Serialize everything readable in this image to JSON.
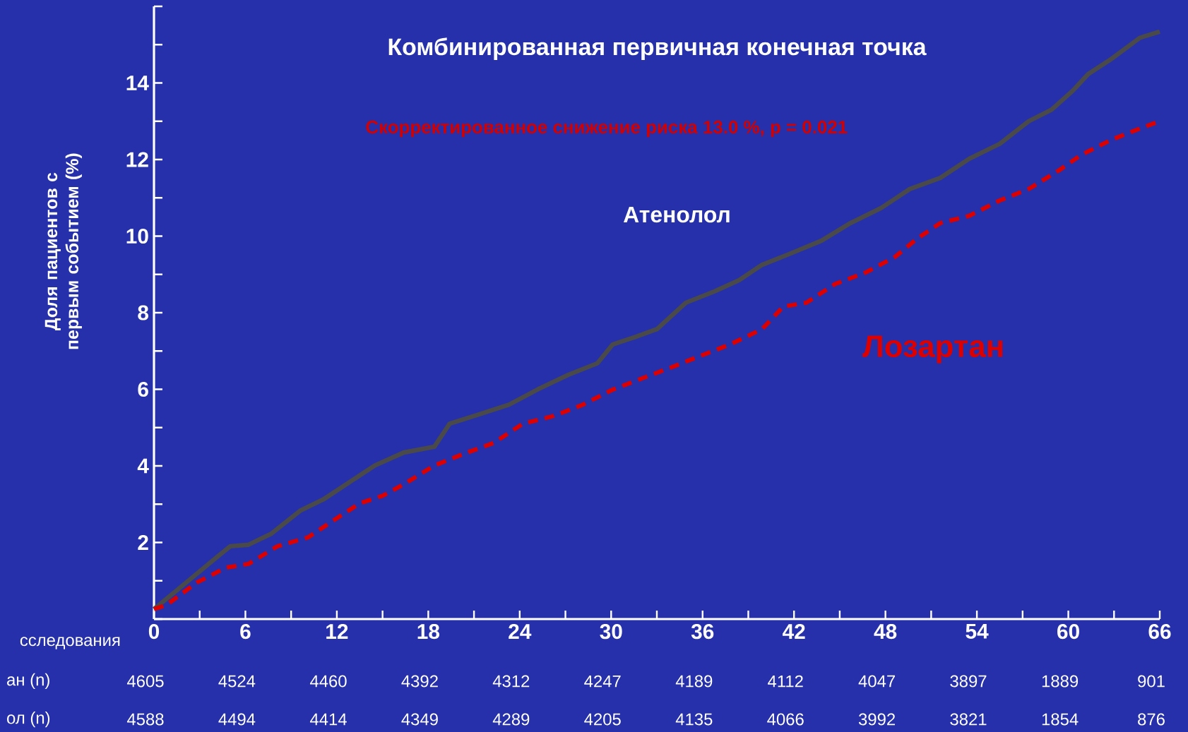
{
  "chart_data": {
    "type": "line",
    "title": "Комбинированная первичная конечная точка",
    "subtitle": "Скорректированное снижение риска **13.0** %, p = 0.021",
    "xlabel": "сследования",
    "ylabel": "Доля пациентов с первым событием (%)",
    "xlim": [
      0,
      66
    ],
    "ylim": [
      0,
      16
    ],
    "xticks": [
      0,
      6,
      12,
      18,
      24,
      30,
      36,
      42,
      48,
      54,
      60,
      66
    ],
    "yticks": [
      {
        "value": 0,
        "label": null
      },
      {
        "value": 1,
        "label": null
      },
      2,
      {
        "value": 3,
        "label": null
      },
      4,
      {
        "value": 5,
        "label": null
      },
      6,
      {
        "value": 7,
        "label": null
      },
      8,
      {
        "value": 9,
        "label": null
      },
      10,
      {
        "value": 11,
        "label": null
      },
      12,
      {
        "value": 13,
        "label": null
      },
      14,
      {
        "value": 15,
        "label": null
      },
      {
        "value": 16,
        "label": null
      }
    ],
    "grid": false,
    "series": [
      {
        "name": "Атенолол",
        "color": "#4a4a4a",
        "line_style": "solid",
        "x": [
          0,
          1.8,
          4.2,
          5,
          6.2,
          7.7,
          9.6,
          11.1,
          13,
          14.5,
          16.4,
          18.4,
          19.4,
          21.3,
          23.3,
          25.2,
          27.2,
          29.1,
          30.1,
          31.6,
          33,
          34.9,
          36.8,
          38.4,
          39.9,
          41.8,
          43.8,
          45.7,
          47.7,
          49.6,
          51.6,
          53.5,
          55.5,
          57.4,
          58.9,
          60.3,
          61.3,
          62.8,
          64.7,
          66
        ],
        "values": [
          0.26,
          0.85,
          1.64,
          1.9,
          1.94,
          2.23,
          2.83,
          3.12,
          3.62,
          4.01,
          4.35,
          4.5,
          5.1,
          5.34,
          5.6,
          6.0,
          6.38,
          6.68,
          7.17,
          7.37,
          7.57,
          8.26,
          8.56,
          8.85,
          9.25,
          9.55,
          9.88,
          10.34,
          10.73,
          11.23,
          11.52,
          12.02,
          12.41,
          13.0,
          13.3,
          13.8,
          14.23,
          14.62,
          15.18,
          15.34
        ]
      },
      {
        "name": "Лозартан",
        "color": "#dd0000",
        "line_style": "dashed",
        "x": [
          0,
          0.8,
          2.8,
          4.7,
          6.2,
          8.1,
          10.1,
          11.6,
          13.5,
          15,
          16.4,
          18.4,
          20.3,
          22.3,
          24.2,
          26.2,
          28.1,
          30.1,
          32,
          34,
          35.9,
          37.8,
          39.9,
          41.3,
          42.8,
          44.7,
          46.7,
          48.6,
          50.1,
          51.6,
          53.5,
          55.5,
          57.4,
          59.4,
          60.8,
          62.8,
          64.7,
          66
        ],
        "values": [
          0.26,
          0.36,
          0.95,
          1.34,
          1.44,
          1.9,
          2.13,
          2.53,
          3.02,
          3.22,
          3.52,
          4.01,
          4.31,
          4.6,
          5.1,
          5.3,
          5.59,
          5.99,
          6.28,
          6.58,
          6.88,
          7.17,
          7.57,
          8.16,
          8.26,
          8.75,
          9.05,
          9.45,
          9.94,
          10.34,
          10.53,
          10.93,
          11.23,
          11.72,
          12.11,
          12.51,
          12.81,
          13.0
        ]
      }
    ],
    "annotations": [
      "ан (n)",
      "4605",
      "4524",
      "4460",
      "4392",
      "4312",
      "4247",
      "4189",
      "4112",
      "4047",
      "3897",
      "1889",
      "901",
      "ол (n)",
      "4588",
      "4494",
      "4414",
      "4349",
      "4289",
      "4205",
      "4135",
      "4066",
      "3992",
      "3821",
      "1854",
      "876"
    ]
  }
}
